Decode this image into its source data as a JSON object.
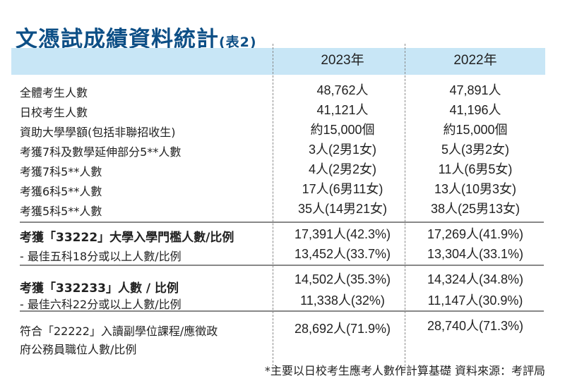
{
  "title": "文憑試成績資料統計",
  "title_suffix": "(表2)",
  "header": {
    "col1": "2023年",
    "col2": "2022年"
  },
  "rows": [
    {
      "label": "全體考生人數",
      "y2023": "48,762人",
      "y2022": "47,891人"
    },
    {
      "label": "日校考生人數",
      "y2023": "41,121人",
      "y2022": "41,196人"
    },
    {
      "label": "資助大學學額(包括非聯招收生)",
      "y2023": "約15,000個",
      "y2022": "約15,000個"
    },
    {
      "label": "考獲7科及數學延伸部分5**人數",
      "y2023": "3人(2男1女)",
      "y2022": "5人(3男2女)"
    },
    {
      "label": "考獲7科5**人數",
      "y2023": "4人(2男2女)",
      "y2022": "11人(6男5女)"
    },
    {
      "label": "考獲6科5**人數",
      "y2023": "17人(6男11女)",
      "y2022": "13人(10男3女)"
    },
    {
      "label": "考獲5科5**人數",
      "y2023": "35人(14男21女)",
      "y2022": "38人(25男13女)"
    },
    {
      "label": "考獲「33222」大學入學門檻人數/比例",
      "y2023": "17,391人(42.3%)",
      "y2022": "17,269人(41.9%)"
    },
    {
      "label": "- 最佳五科18分或以上人數/比例",
      "y2023": "13,452人(33.7%)",
      "y2022": "13,304人(33.1%)"
    },
    {
      "label": "考獲「332233」人數 / 比例",
      "y2023": "14,502人(35.3%)",
      "y2022": "14,324人(34.8%)"
    },
    {
      "label": "- 最佳六科22分或以上人數/比例",
      "y2023": "11,338人(32%)",
      "y2022": "11,147人(30.9%)"
    },
    {
      "label": "符合「22222」入讀副學位課程/應徵政",
      "label2": "府公務員職位人數/比例",
      "y2023": "28,692人(71.9%)",
      "y2022": "28,740人(71.3%)"
    }
  ],
  "footnote": "*主要以日校考生應考人數作計算基礎  資料來源：考評局",
  "colors": {
    "title": "#0d4f86",
    "header_band": "#c8e6f6"
  }
}
